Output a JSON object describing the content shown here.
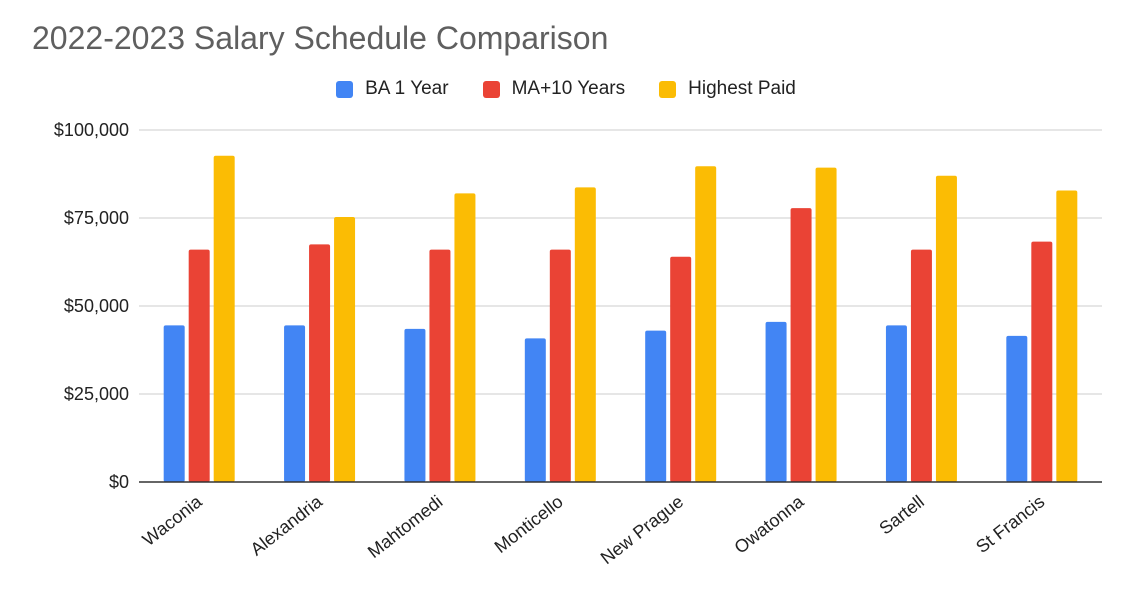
{
  "colors": {
    "blue": "#4285f4",
    "red": "#ea4335",
    "yellow": "#fbbc04",
    "grid": "#cccccc",
    "axis": "#333333"
  },
  "chart_data": {
    "type": "bar",
    "title": "2022-2023 Salary Schedule Comparison",
    "xlabel": "",
    "ylabel": "",
    "ylim": [
      0,
      100000
    ],
    "yticks": [
      {
        "value": 0,
        "label": "$0"
      },
      {
        "value": 25000,
        "label": "$25,000"
      },
      {
        "value": 50000,
        "label": "$50,000"
      },
      {
        "value": 75000,
        "label": "$75,000"
      },
      {
        "value": 100000,
        "label": "$100,000"
      }
    ],
    "categories": [
      "Waconia",
      "Alexandria",
      "Mahtomedi",
      "Monticello",
      "New Prague",
      "Owatonna",
      "Sartell",
      "St Francis"
    ],
    "legend_position": "top-center",
    "grid": true,
    "series": [
      {
        "name": "BA 1 Year",
        "color": "#4285f4",
        "values": [
          44500,
          44500,
          43500,
          40800,
          43000,
          45500,
          44500,
          41500
        ]
      },
      {
        "name": "MA+10 Years",
        "color": "#ea4335",
        "values": [
          66000,
          67500,
          66000,
          66000,
          64000,
          77800,
          66000,
          68300
        ]
      },
      {
        "name": "Highest Paid",
        "color": "#fbbc04",
        "values": [
          92700,
          75300,
          82000,
          83700,
          89700,
          89300,
          87000,
          82800
        ]
      }
    ]
  }
}
